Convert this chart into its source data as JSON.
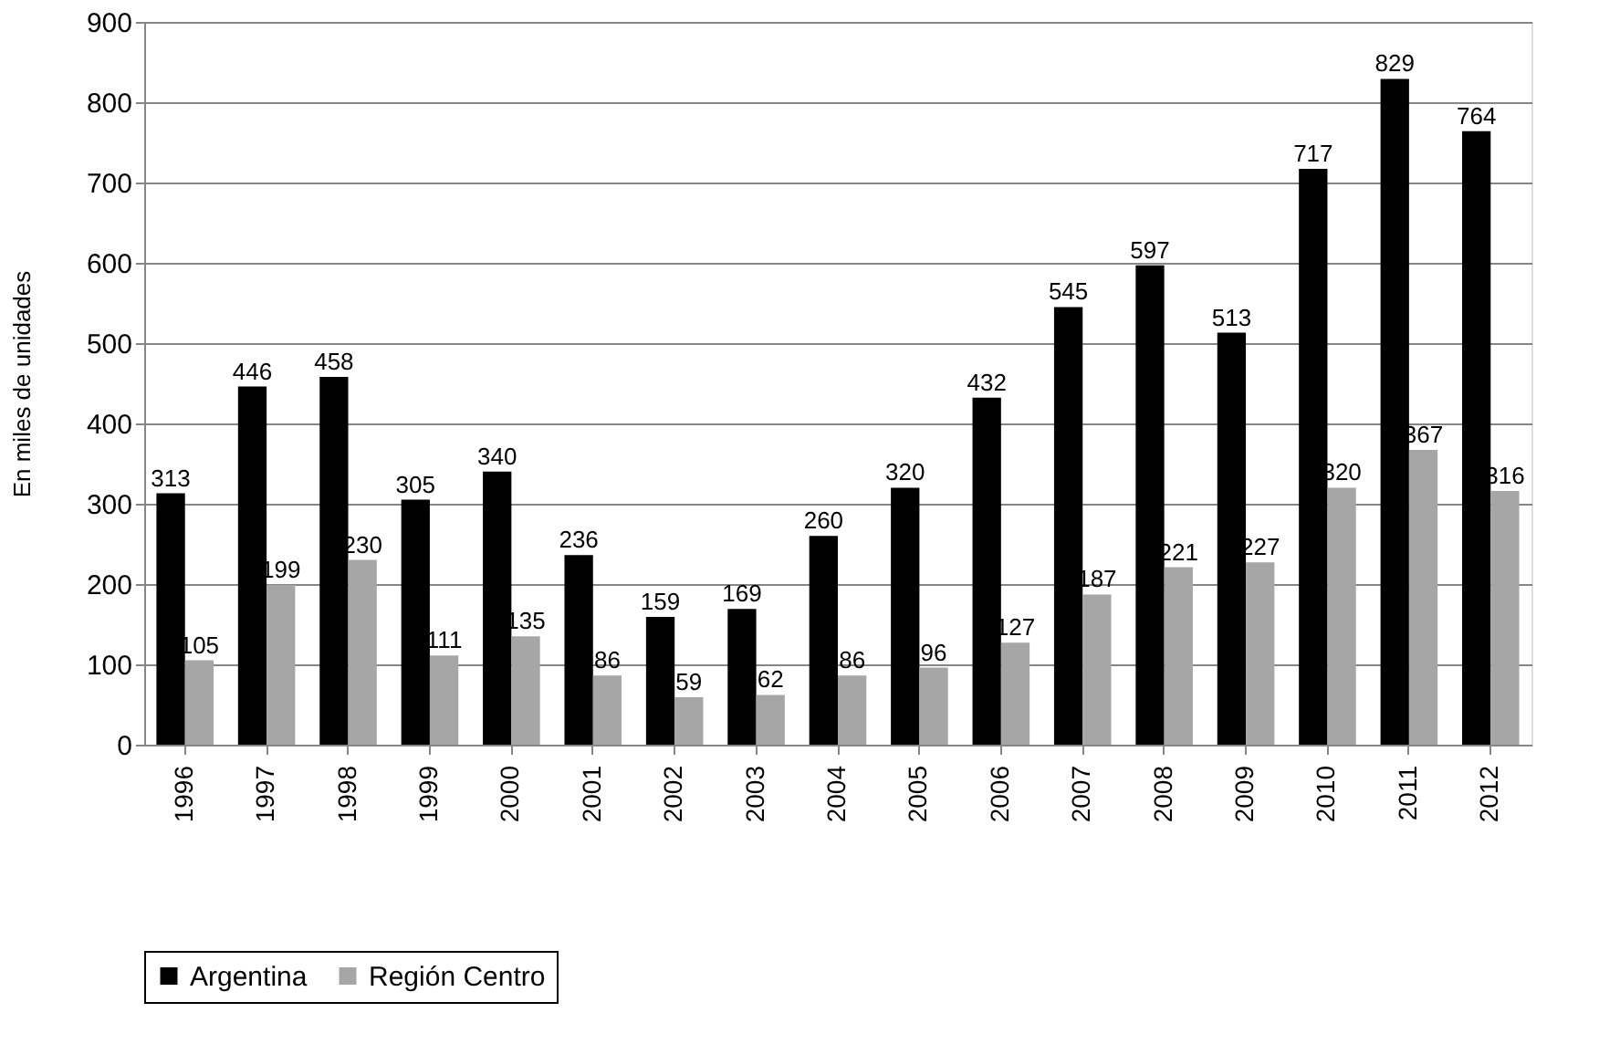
{
  "chart_data": {
    "type": "bar",
    "ylabel": "En miles de unidades",
    "categories": [
      "1996",
      "1997",
      "1998",
      "1999",
      "2000",
      "2001",
      "2002",
      "2003",
      "2004",
      "2005",
      "2006",
      "2007",
      "2008",
      "2009",
      "2010",
      "2011",
      "2012"
    ],
    "series": [
      {
        "name": "Argentina",
        "color": "#000000",
        "values": [
          313,
          446,
          458,
          305,
          340,
          236,
          159,
          169,
          260,
          320,
          432,
          545,
          597,
          513,
          717,
          829,
          764
        ]
      },
      {
        "name": "Región Centro",
        "color": "#a6a6a6",
        "values": [
          105,
          199,
          230,
          111,
          135,
          86,
          59,
          62,
          86,
          96,
          127,
          187,
          221,
          227,
          320,
          367,
          316
        ]
      }
    ],
    "ylim": [
      0,
      900
    ],
    "yticks": [
      0,
      100,
      200,
      300,
      400,
      500,
      600,
      700,
      800,
      900
    ],
    "grid": "y",
    "legend": "bottom",
    "data_labels": true
  }
}
